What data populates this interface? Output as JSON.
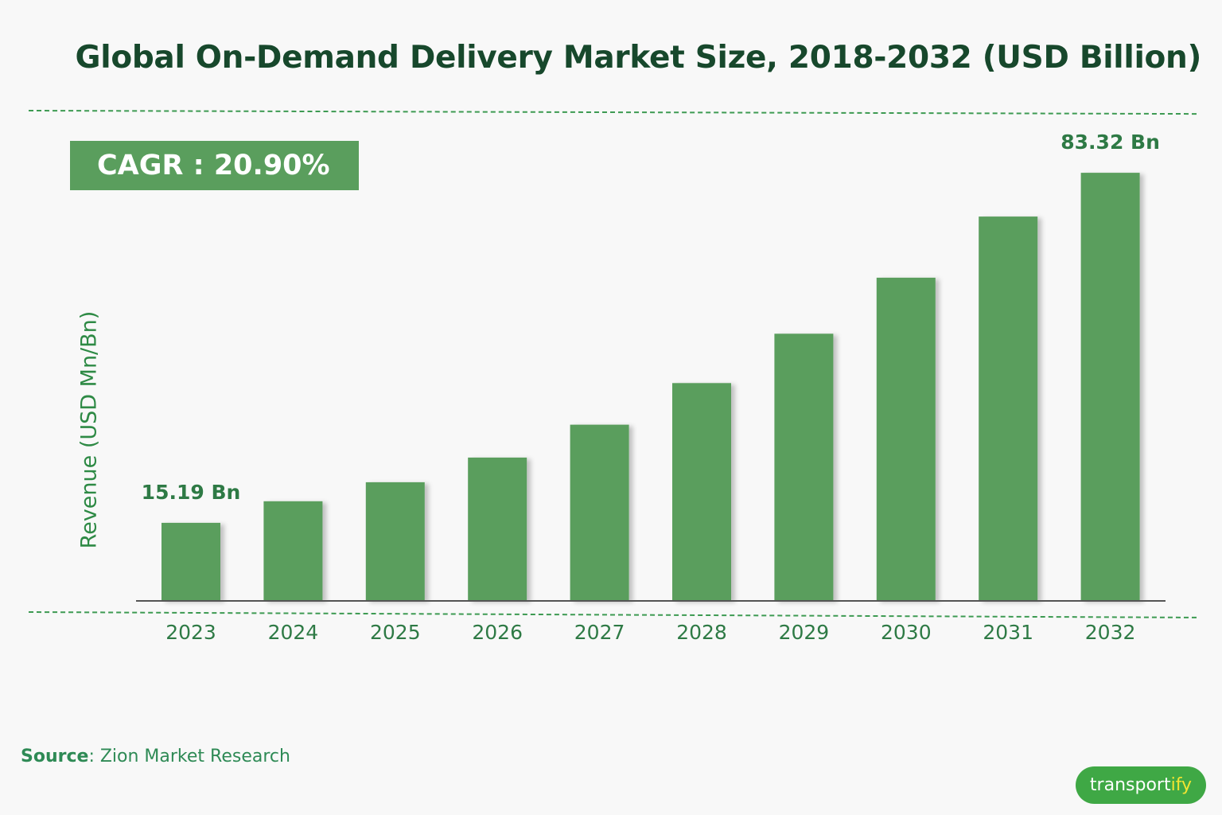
{
  "title": "Global On-Demand Delivery Market Size, 2018-2032 (USD Billion)",
  "cagr": {
    "label": "CAGR : 20.90%"
  },
  "source": {
    "label": "Source",
    "text": ": Zion Market Research"
  },
  "logo": {
    "main": "transport",
    "accent": "ify"
  },
  "colors": {
    "bar": "#5a9e5d",
    "title": "#17482c",
    "label": "#2e7a45",
    "axis": "#555555"
  },
  "chart_data": {
    "type": "bar",
    "title": "Global On-Demand Delivery Market Size, 2018-2032 (USD Billion)",
    "xlabel": "",
    "ylabel": "Revenue (USD Mn/Bn)",
    "categories": [
      "2023",
      "2024",
      "2025",
      "2026",
      "2027",
      "2028",
      "2029",
      "2030",
      "2031",
      "2032"
    ],
    "values": [
      15.19,
      19.4,
      23.1,
      27.9,
      34.3,
      42.4,
      52.0,
      62.9,
      74.8,
      83.32
    ],
    "ylim": [
      0,
      90
    ],
    "grid": false,
    "data_labels": [
      {
        "category": "2023",
        "text": "15.19 Bn"
      },
      {
        "category": "2032",
        "text": "83.32 Bn"
      }
    ]
  }
}
